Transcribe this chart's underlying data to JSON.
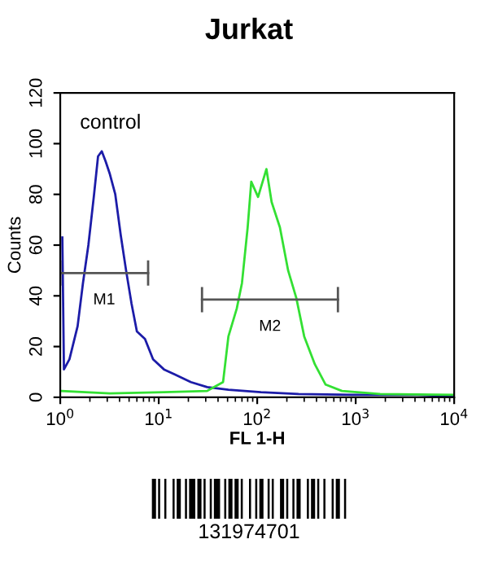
{
  "chart_data": {
    "type": "line",
    "title": "Jurkat",
    "xlabel": "FL 1-H",
    "ylabel": "Counts",
    "log": "x",
    "xlim": [
      1,
      10000
    ],
    "xticks": [
      {
        "value": 1,
        "label": "10$^{0}$"
      },
      {
        "value": 10,
        "label": "10$^{1}$"
      },
      {
        "value": 100,
        "label": "10$^{2}$"
      },
      {
        "value": 1000,
        "label": "10$^{3}$"
      },
      {
        "value": 10000,
        "label": "10$^{4}$"
      }
    ],
    "ylim": [
      0,
      120
    ],
    "yticks": [
      0,
      20,
      40,
      60,
      80,
      100,
      120
    ],
    "grid": false,
    "series": [
      {
        "color": "#1c1ca8",
        "x": [
          1.05,
          1.09,
          1.24,
          1.5,
          1.7,
          1.93,
          2.19,
          2.42,
          2.64,
          2.89,
          3.19,
          3.62,
          4.11,
          4.66,
          5.29,
          6.0,
          7.25,
          8.76,
          11.3,
          14.5,
          21.2,
          31,
          51,
          109,
          263,
          933,
          4230,
          10000
        ],
        "values": [
          63,
          11,
          15,
          28,
          45,
          60,
          79,
          95,
          97,
          93,
          88,
          80,
          64,
          50,
          37,
          26,
          23,
          15,
          11,
          9,
          6,
          4,
          3,
          2,
          1.3,
          1,
          1,
          0.4
        ]
      },
      {
        "color": "#33e033",
        "x": [
          1.03,
          3.19,
          11.3,
          31,
          45,
          51,
          62,
          70,
          80,
          87,
          102,
          124,
          140,
          170,
          206,
          250,
          300,
          385,
          495,
          725,
          1770,
          10000
        ],
        "values": [
          2.5,
          1.5,
          2,
          2.5,
          6,
          24,
          35,
          45,
          67,
          85,
          79,
          90,
          77,
          67,
          50,
          39,
          24,
          13,
          5,
          2.5,
          1.3,
          1
        ]
      },
      {
        "color": "#555555",
        "x": [
          1,
          7.8
        ],
        "values": [
          49,
          49
        ],
        "errors": [
          5,
          5
        ]
      },
      {
        "color": "#555555",
        "x": [
          27.5,
          660
        ],
        "values": [
          38.5,
          38.5
        ],
        "errors": [
          5,
          5
        ]
      }
    ],
    "annotations": [
      "control",
      "M1",
      "M2",
      "131974701"
    ]
  }
}
